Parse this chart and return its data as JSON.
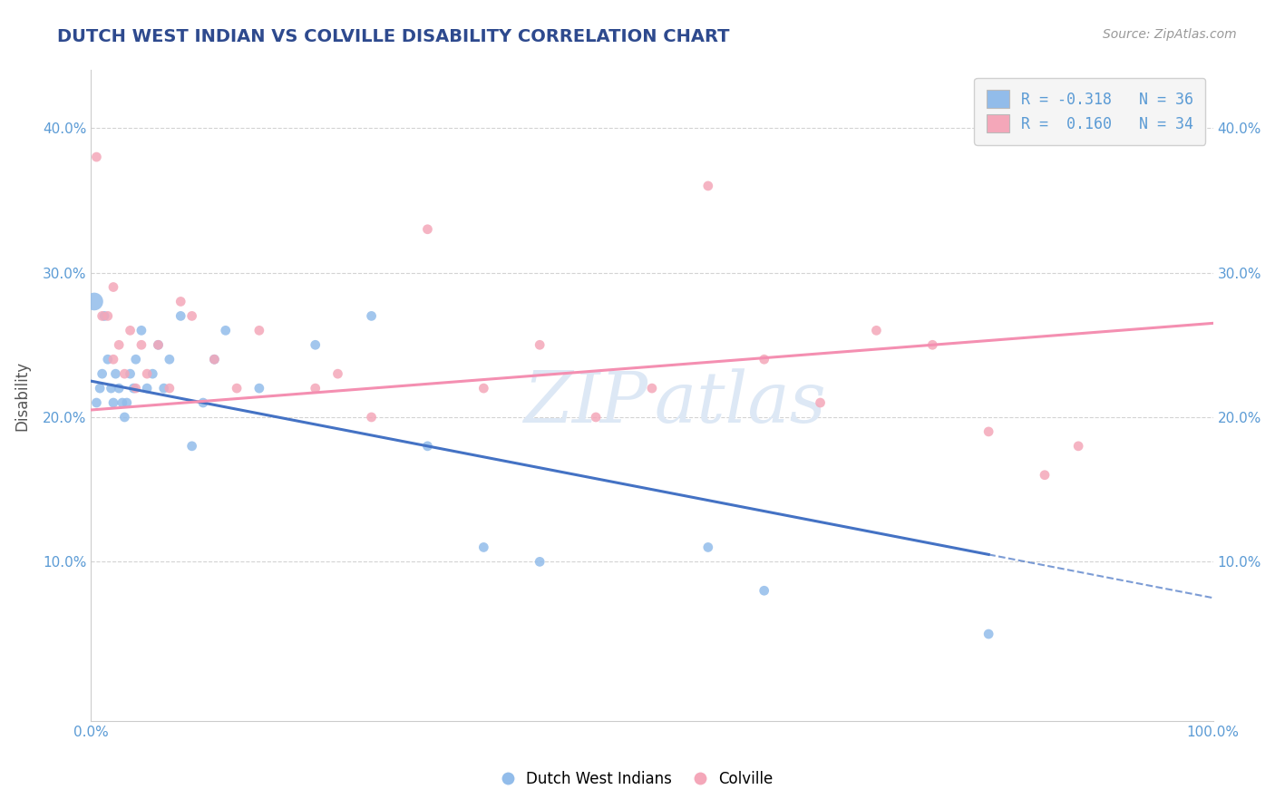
{
  "title": "DUTCH WEST INDIAN VS COLVILLE DISABILITY CORRELATION CHART",
  "source": "Source: ZipAtlas.com",
  "xlabel": "",
  "ylabel": "Disability",
  "xlim": [
    0,
    100
  ],
  "ylim": [
    -1,
    44
  ],
  "yticks": [
    10,
    20,
    30,
    40
  ],
  "ytick_labels": [
    "10.0%",
    "20.0%",
    "30.0%",
    "40.0%"
  ],
  "xticks": [
    0,
    100
  ],
  "xtick_labels": [
    "0.0%",
    "100.0%"
  ],
  "blue_R": -0.318,
  "blue_N": 36,
  "pink_R": 0.16,
  "pink_N": 34,
  "blue_color": "#92bcea",
  "pink_color": "#f4a7b9",
  "blue_line_color": "#4472c4",
  "pink_line_color": "#f48fb1",
  "title_color": "#2e4a8e",
  "axis_label_color": "#5b9bd5",
  "watermark_color": "#d0dff0",
  "background_color": "#ffffff",
  "grid_color": "#c8c8c8",
  "blue_points_x": [
    0.3,
    0.5,
    0.8,
    1.0,
    1.2,
    1.5,
    1.8,
    2.0,
    2.2,
    2.5,
    2.8,
    3.0,
    3.2,
    3.5,
    3.8,
    4.0,
    4.5,
    5.0,
    5.5,
    6.0,
    6.5,
    7.0,
    8.0,
    9.0,
    10.0,
    11.0,
    12.0,
    15.0,
    20.0,
    25.0,
    30.0,
    35.0,
    40.0,
    55.0,
    60.0,
    80.0
  ],
  "blue_points_y": [
    28,
    21,
    22,
    23,
    27,
    24,
    22,
    21,
    23,
    22,
    21,
    20,
    21,
    23,
    22,
    24,
    26,
    22,
    23,
    25,
    22,
    24,
    27,
    18,
    21,
    24,
    26,
    22,
    25,
    27,
    18,
    11,
    10,
    11,
    8,
    5
  ],
  "blue_point_sizes": [
    200,
    60,
    60,
    60,
    60,
    60,
    60,
    60,
    60,
    60,
    60,
    60,
    60,
    60,
    60,
    60,
    60,
    60,
    60,
    60,
    60,
    60,
    60,
    60,
    60,
    60,
    60,
    60,
    60,
    60,
    60,
    60,
    60,
    60,
    60,
    60
  ],
  "pink_points_x": [
    0.5,
    1.0,
    2.0,
    2.5,
    3.0,
    3.5,
    4.0,
    4.5,
    5.0,
    6.0,
    7.0,
    8.0,
    9.0,
    11.0,
    13.0,
    15.0,
    20.0,
    22.0,
    25.0,
    30.0,
    35.0,
    40.0,
    45.0,
    50.0,
    55.0,
    60.0,
    65.0,
    70.0,
    75.0,
    80.0,
    85.0,
    88.0,
    2.0,
    1.5
  ],
  "pink_points_y": [
    38,
    27,
    24,
    25,
    23,
    26,
    22,
    25,
    23,
    25,
    22,
    28,
    27,
    24,
    22,
    26,
    22,
    23,
    20,
    33,
    22,
    25,
    20,
    22,
    36,
    24,
    21,
    26,
    25,
    19,
    16,
    18,
    29,
    27
  ],
  "pink_point_sizes": [
    60,
    60,
    60,
    60,
    60,
    60,
    60,
    60,
    60,
    60,
    60,
    60,
    60,
    60,
    60,
    60,
    60,
    60,
    60,
    60,
    60,
    60,
    60,
    60,
    60,
    60,
    60,
    60,
    60,
    60,
    60,
    60,
    60,
    60
  ],
  "legend_box_color": "#f5f5f5",
  "legend_border_color": "#d0d0d0",
  "blue_line_x_start": 0,
  "blue_line_x_solid_end": 80,
  "blue_line_x_dash_end": 100,
  "blue_line_y_at0": 22.5,
  "blue_line_y_at80": 10.5,
  "blue_line_y_at100": 7.5,
  "pink_line_y_at0": 20.5,
  "pink_line_y_at100": 26.5
}
